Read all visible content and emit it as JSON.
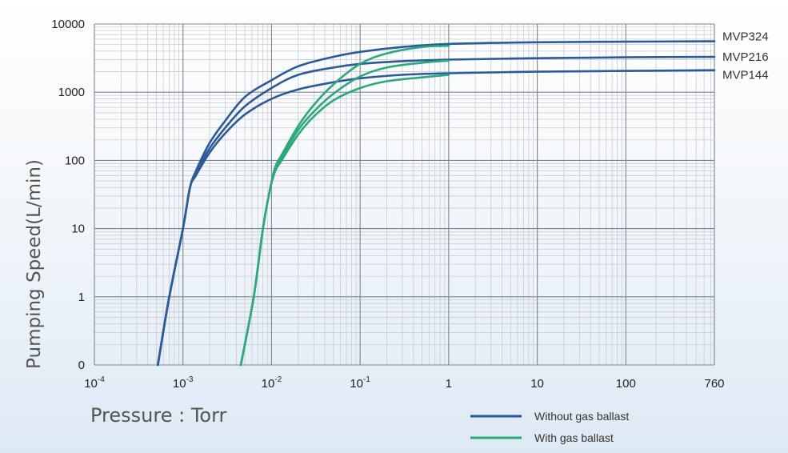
{
  "chart_data": {
    "type": "line",
    "title": "",
    "xlabel": "Pressure : Torr",
    "ylabel": "Pumping Speed(L/min)",
    "x_scale": "log",
    "y_scale": "log",
    "xlim": [
      0.0001,
      760
    ],
    "ylim": [
      0.1,
      10000
    ],
    "grid": true,
    "x_ticks": [
      {
        "value": 0.0001,
        "base": "10",
        "exp": "-4"
      },
      {
        "value": 0.001,
        "base": "10",
        "exp": "-3"
      },
      {
        "value": 0.01,
        "base": "10",
        "exp": "-2"
      },
      {
        "value": 0.1,
        "base": "10",
        "exp": "-1"
      },
      {
        "value": 1,
        "base": "1",
        "exp": ""
      },
      {
        "value": 10,
        "base": "10",
        "exp": ""
      },
      {
        "value": 100,
        "base": "100",
        "exp": ""
      },
      {
        "value": 760,
        "base": "760",
        "exp": ""
      }
    ],
    "y_ticks": [
      {
        "value": 0.1,
        "label": "0"
      },
      {
        "value": 1,
        "label": "1"
      },
      {
        "value": 10,
        "label": "10"
      },
      {
        "value": 100,
        "label": "100"
      },
      {
        "value": 1000,
        "label": "1000"
      },
      {
        "value": 10000,
        "label": "10000"
      }
    ],
    "legend": {
      "position": "bottom-right",
      "entries": [
        {
          "label": "Without gas ballast",
          "color": "#2a5a9c"
        },
        {
          "label": "With gas ballast",
          "color": "#2aaa7a"
        }
      ]
    },
    "series": [
      {
        "name": "MVP324",
        "group": "Without gas ballast",
        "color": "#2a5a9c",
        "points": [
          [
            0.00052,
            0.1
          ],
          [
            0.0007,
            1
          ],
          [
            0.001,
            10
          ],
          [
            0.0012,
            40
          ],
          [
            0.0014,
            70
          ],
          [
            0.002,
            180
          ],
          [
            0.003,
            380
          ],
          [
            0.005,
            850
          ],
          [
            0.01,
            1500
          ],
          [
            0.02,
            2400
          ],
          [
            0.05,
            3300
          ],
          [
            0.1,
            3900
          ],
          [
            0.3,
            4600
          ],
          [
            1,
            5100
          ],
          [
            10,
            5400
          ],
          [
            100,
            5500
          ],
          [
            760,
            5600
          ]
        ]
      },
      {
        "name": "MVP216",
        "group": "Without gas ballast",
        "color": "#2a5a9c",
        "points": [
          [
            0.00052,
            0.1
          ],
          [
            0.0007,
            1
          ],
          [
            0.001,
            10
          ],
          [
            0.0012,
            40
          ],
          [
            0.0014,
            65
          ],
          [
            0.002,
            150
          ],
          [
            0.003,
            300
          ],
          [
            0.005,
            620
          ],
          [
            0.01,
            1150
          ],
          [
            0.02,
            1800
          ],
          [
            0.05,
            2300
          ],
          [
            0.1,
            2600
          ],
          [
            0.3,
            2850
          ],
          [
            1,
            3000
          ],
          [
            10,
            3150
          ],
          [
            100,
            3250
          ],
          [
            760,
            3300
          ]
        ]
      },
      {
        "name": "MVP144",
        "group": "Without gas ballast",
        "color": "#2a5a9c",
        "points": [
          [
            0.00052,
            0.1
          ],
          [
            0.0007,
            1
          ],
          [
            0.001,
            10
          ],
          [
            0.0012,
            40
          ],
          [
            0.0014,
            60
          ],
          [
            0.002,
            130
          ],
          [
            0.003,
            250
          ],
          [
            0.005,
            470
          ],
          [
            0.01,
            800
          ],
          [
            0.02,
            1100
          ],
          [
            0.05,
            1400
          ],
          [
            0.1,
            1600
          ],
          [
            0.3,
            1800
          ],
          [
            1,
            1900
          ],
          [
            10,
            2000
          ],
          [
            100,
            2050
          ],
          [
            760,
            2100
          ]
        ]
      },
      {
        "name": "",
        "group": "With gas ballast",
        "color": "#2aaa7a",
        "points": [
          [
            0.0045,
            0.1
          ],
          [
            0.0063,
            1
          ],
          [
            0.008,
            10
          ],
          [
            0.0095,
            35
          ],
          [
            0.011,
            80
          ],
          [
            0.013,
            120
          ],
          [
            0.02,
            320
          ],
          [
            0.03,
            650
          ],
          [
            0.05,
            1300
          ],
          [
            0.1,
            2600
          ],
          [
            0.2,
            3700
          ],
          [
            0.5,
            4600
          ],
          [
            1,
            4800
          ]
        ]
      },
      {
        "name": "",
        "group": "With gas ballast",
        "color": "#2aaa7a",
        "points": [
          [
            0.0045,
            0.1
          ],
          [
            0.0063,
            1
          ],
          [
            0.008,
            10
          ],
          [
            0.0095,
            35
          ],
          [
            0.011,
            75
          ],
          [
            0.013,
            110
          ],
          [
            0.02,
            280
          ],
          [
            0.03,
            520
          ],
          [
            0.05,
            950
          ],
          [
            0.1,
            1700
          ],
          [
            0.2,
            2300
          ],
          [
            0.5,
            2700
          ],
          [
            1,
            2900
          ]
        ]
      },
      {
        "name": "",
        "group": "With gas ballast",
        "color": "#2aaa7a",
        "points": [
          [
            0.0045,
            0.1
          ],
          [
            0.0063,
            1
          ],
          [
            0.008,
            10
          ],
          [
            0.0095,
            35
          ],
          [
            0.011,
            70
          ],
          [
            0.013,
            100
          ],
          [
            0.02,
            240
          ],
          [
            0.03,
            440
          ],
          [
            0.05,
            760
          ],
          [
            0.1,
            1150
          ],
          [
            0.2,
            1450
          ],
          [
            0.5,
            1650
          ],
          [
            1,
            1800
          ]
        ]
      }
    ]
  }
}
